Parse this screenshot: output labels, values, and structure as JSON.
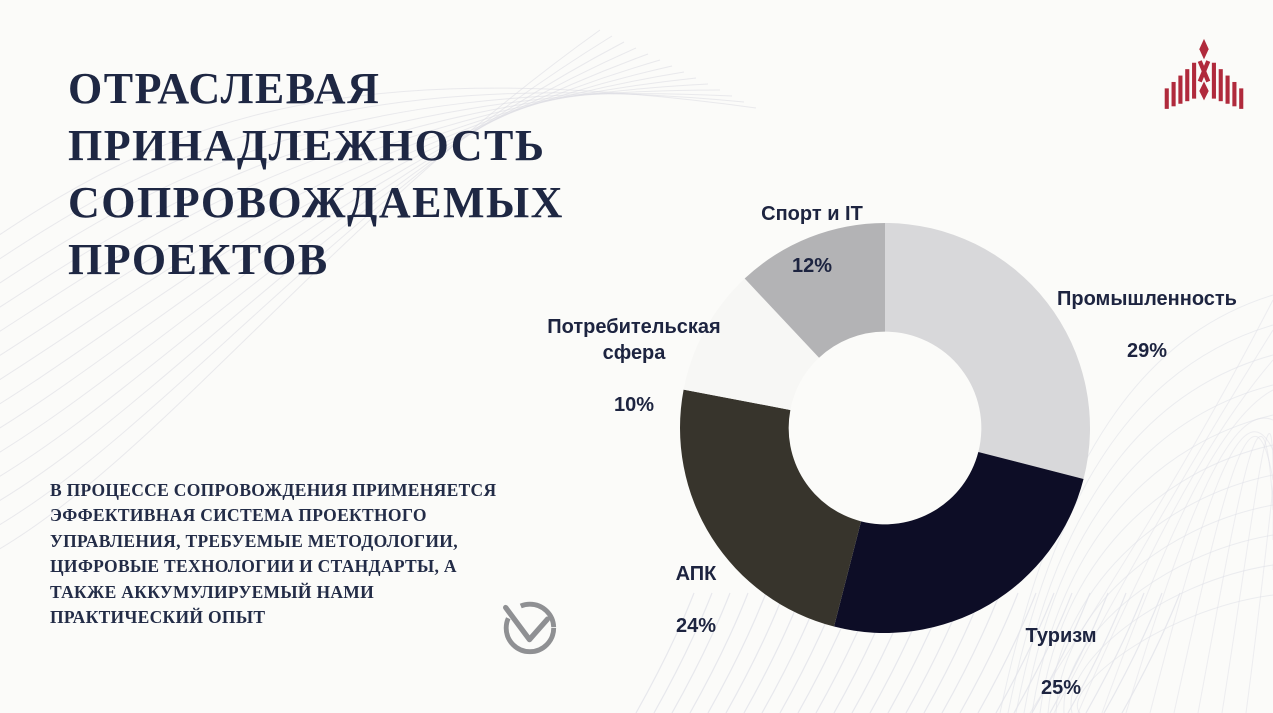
{
  "slide": {
    "background_color": "#fbfbf9",
    "title": "ОТРАСЛЕВАЯ\nПРИНАДЛЕЖНОСТЬ\nСОПРОВОЖДАЕМЫХ\nПРОЕКТОВ",
    "title_color": "#1e2743",
    "body_text": "В ПРОЦЕССЕ СОПРОВОЖДЕНИЯ ПРИМЕНЯЕТСЯ\nЭФФЕКТИВНАЯ СИСТЕМА ПРОЕКТНОГО\nУПРАВЛЕНИЯ, ТРЕБУЕМЫЕ МЕТОДОЛОГИИ,\nЦИФРОВЫЕ ТЕХНОЛОГИИ И СТАНДАРТЫ, А\nТАКЖЕ АККУМУЛИРУЕМЫЙ НАМИ\nПРАКТИЧЕСКИЙ ОПЫТ",
    "body_color": "#232c47",
    "icons": {
      "check_circle": "check-mark-in-circle",
      "check_circle_color": "#8f9093",
      "logo": "red-striped-peak-emblem",
      "logo_color": "#b02a3c"
    }
  },
  "chart_data": {
    "type": "pie",
    "subtype": "donut",
    "title": "",
    "categories": [
      "Промышленность",
      "Туризм",
      "АПК",
      "Потребительская сфера",
      "Спорт и IT"
    ],
    "values": [
      29,
      25,
      24,
      10,
      12
    ],
    "unit": "%",
    "colors": [
      "#d8d8da",
      "#0d0d26",
      "#37342c",
      "#f7f7f5",
      "#b3b3b5"
    ],
    "start_angle_deg": -90,
    "direction": "clockwise",
    "inner_radius_ratio": 0.47,
    "legend": "none",
    "labels": [
      {
        "name": "Промышленность",
        "pct": "29%"
      },
      {
        "name": "Туризм",
        "pct": "25%"
      },
      {
        "name": "АПК",
        "pct": "24%"
      },
      {
        "name": "Потребительская\nсфера",
        "pct": "10%"
      },
      {
        "name": "Спорт и IT",
        "pct": "12%"
      }
    ]
  }
}
